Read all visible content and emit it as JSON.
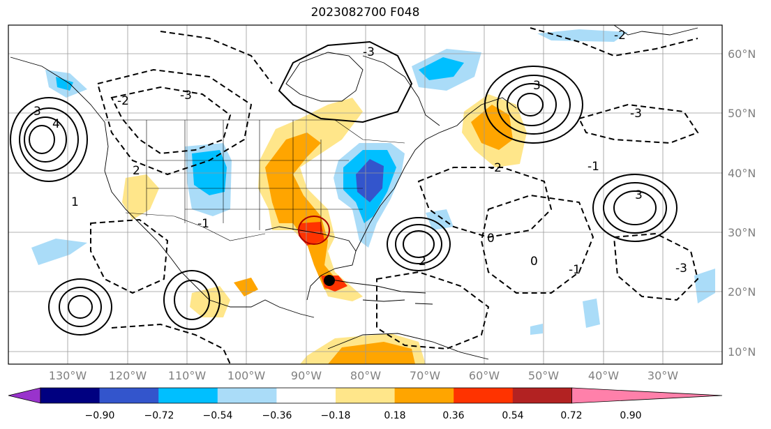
{
  "title": "2023082700 F048",
  "map": {
    "lat_labels": [
      "60°N",
      "50°N",
      "40°N",
      "30°N",
      "20°N",
      "10°N"
    ],
    "lon_labels": [
      "130°W",
      "120°W",
      "110°W",
      "100°W",
      "90°W",
      "80°W",
      "70°W",
      "60°W",
      "50°W",
      "40°W",
      "30°W"
    ],
    "contour_labels": [
      "3",
      "4",
      "-2",
      "-3",
      "2",
      "-1",
      "1",
      "0",
      "3",
      "-2",
      "-3",
      "3",
      "-1",
      "-3",
      "2",
      "-3",
      "-2",
      "0",
      "-1"
    ]
  },
  "colorbar": {
    "ticks": [
      "−0.90",
      "−0.72",
      "−0.54",
      "−0.36",
      "−0.18",
      "0.18",
      "0.36",
      "0.54",
      "0.72",
      "0.90"
    ],
    "colors": [
      "#9933cc",
      "#000080",
      "#3355cc",
      "#00bfff",
      "#aadcf8",
      "#ffffff",
      "#ffe68a",
      "#ffa500",
      "#ff3300",
      "#b22222",
      "#ff80aa"
    ]
  }
}
